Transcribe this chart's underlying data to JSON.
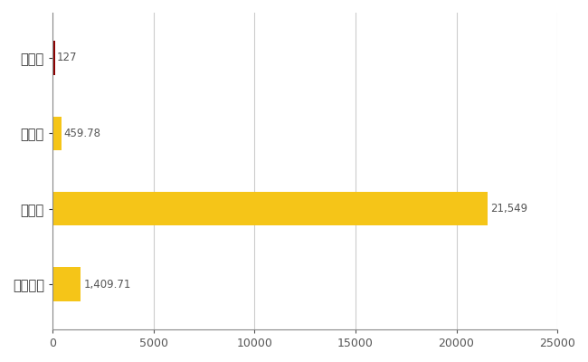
{
  "categories": [
    "安平町",
    "県平均",
    "県最大",
    "全国平均"
  ],
  "values": [
    127,
    459.78,
    21549,
    1409.71
  ],
  "bar_colors": [
    "#8B0000",
    "#F5C518",
    "#F5C518",
    "#F5C518"
  ],
  "value_labels": [
    "127",
    "459.78",
    "21,549",
    "1,409.71"
  ],
  "xlim": [
    0,
    25000
  ],
  "xticks": [
    0,
    5000,
    10000,
    15000,
    20000,
    25000
  ],
  "xtick_labels": [
    "0",
    "5000",
    "10000",
    "15000",
    "20000",
    "25000"
  ],
  "background_color": "#ffffff",
  "grid_color": "#cccccc",
  "bar_height": 0.45
}
